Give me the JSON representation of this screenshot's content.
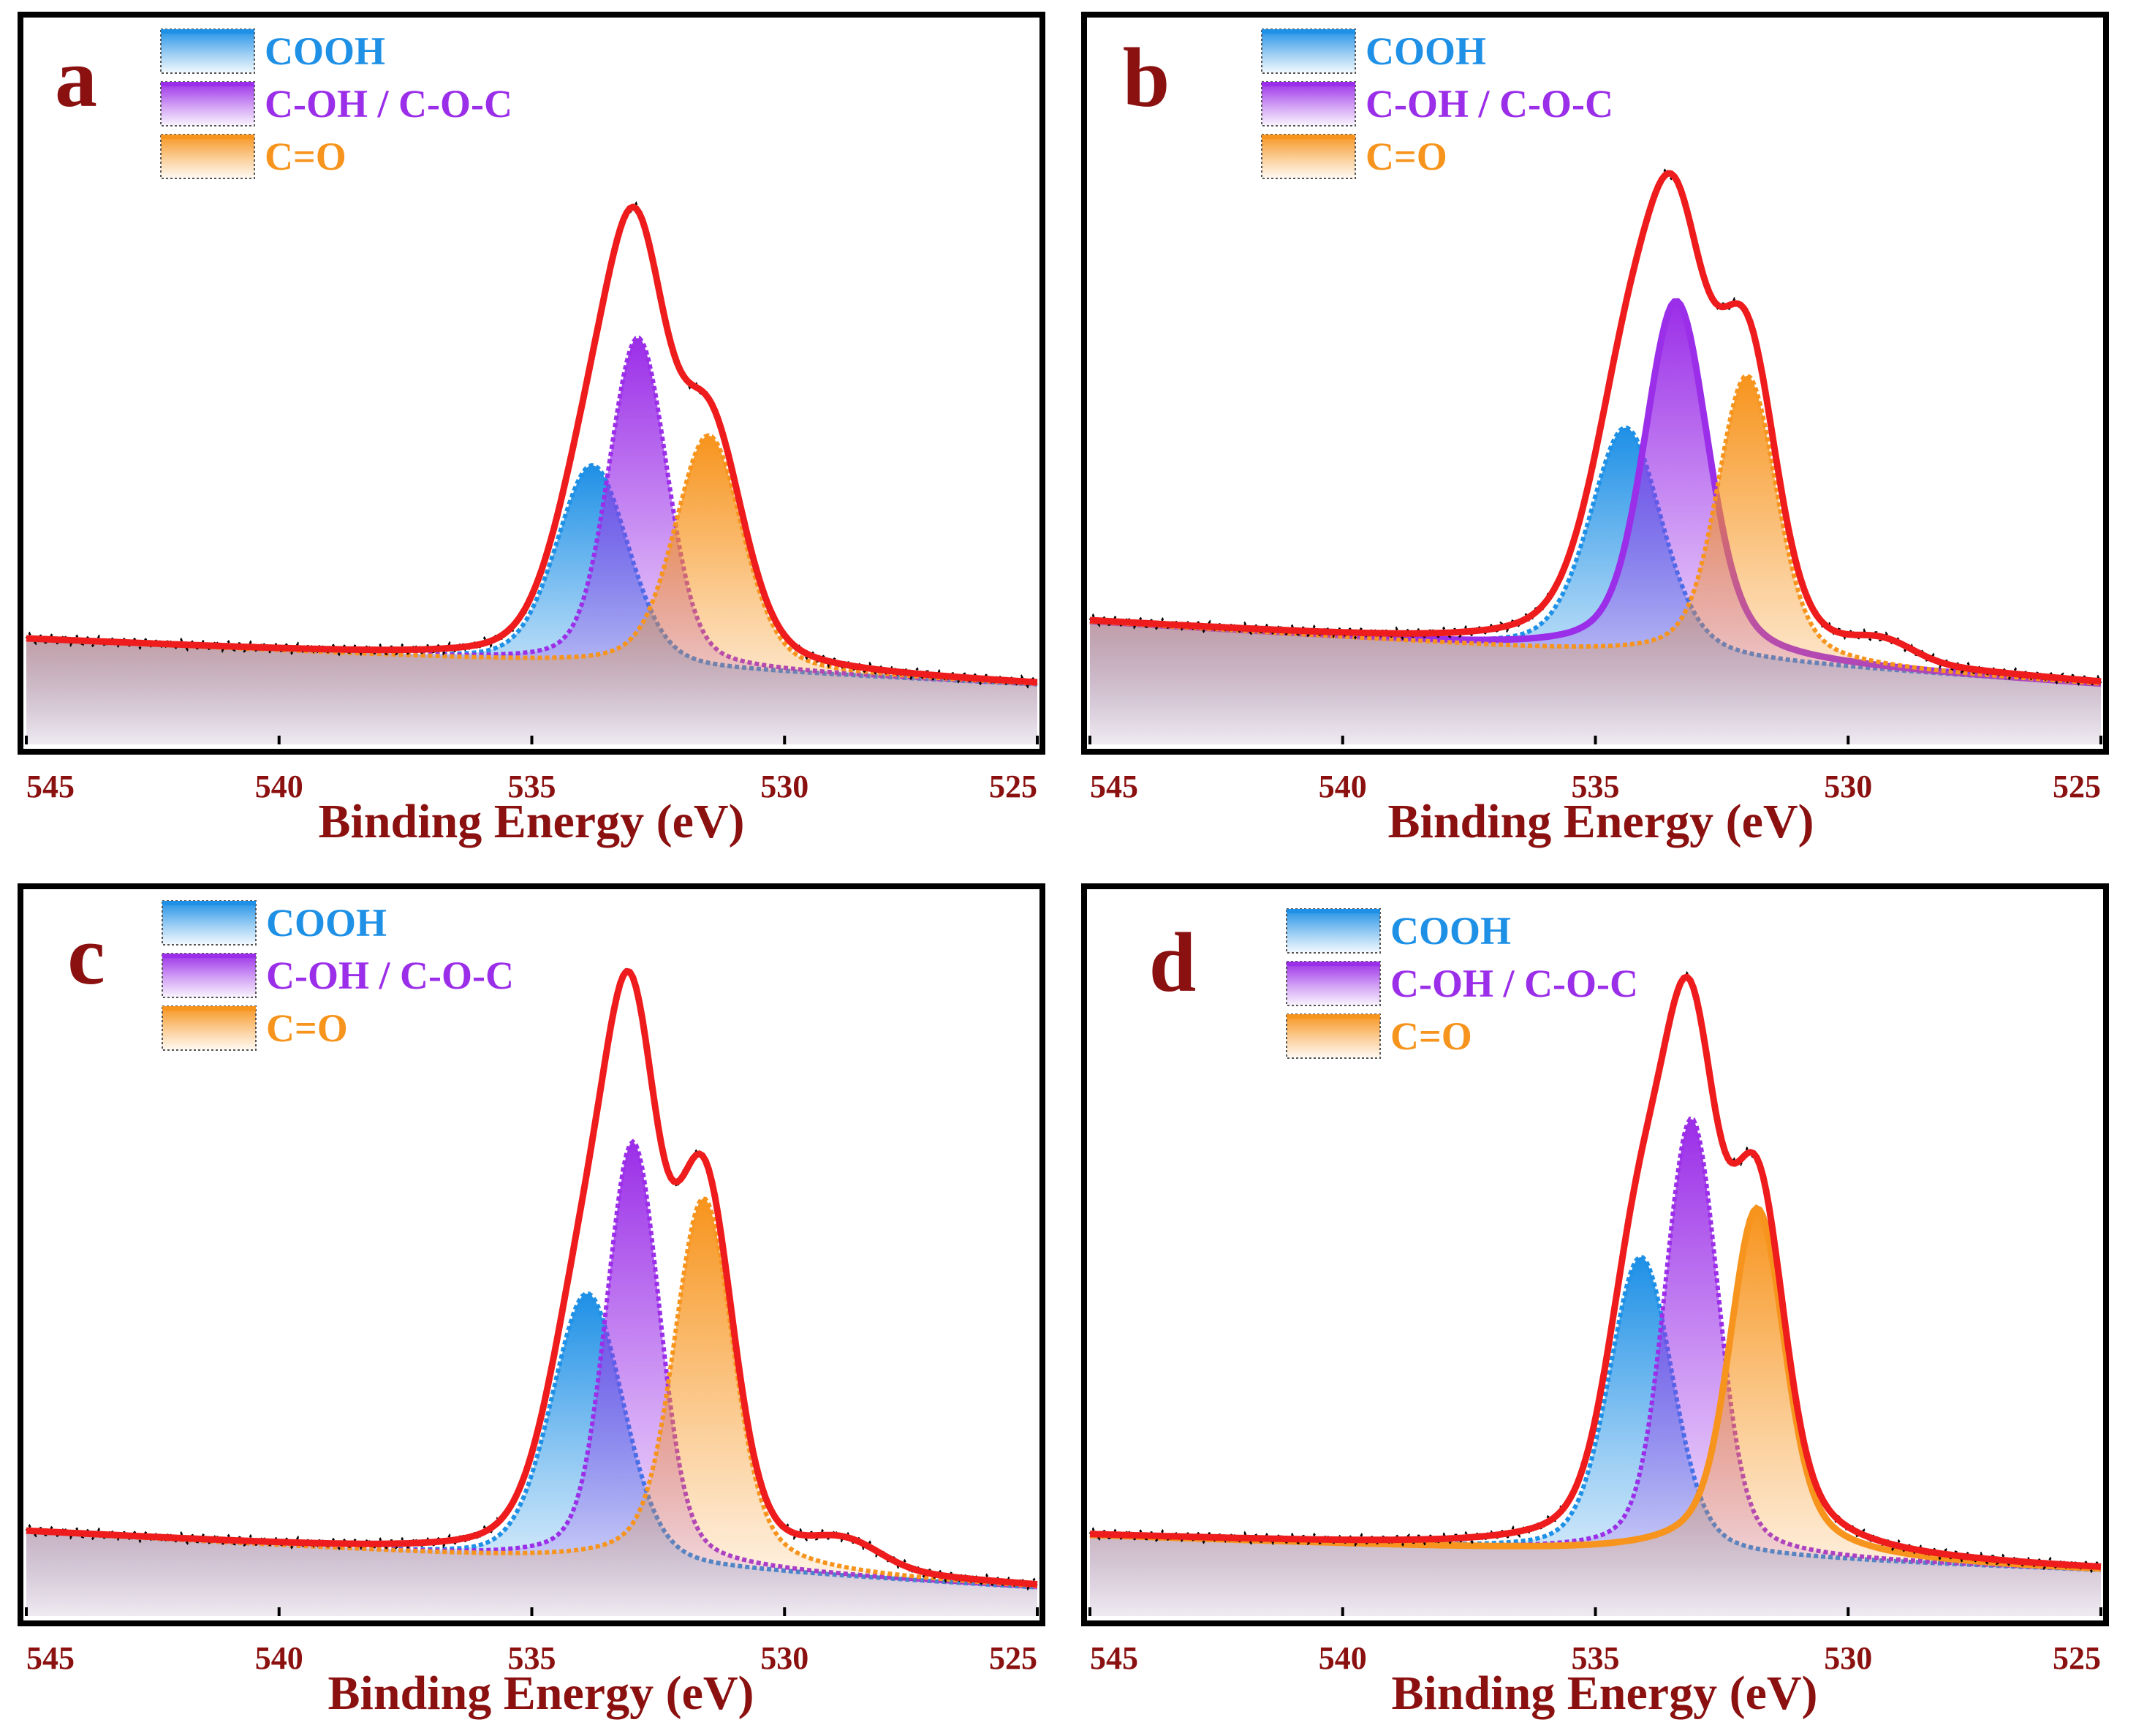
{
  "figure": {
    "description_colors": {
      "frame": "#000000",
      "axis_text": "#8b1010",
      "fit_envelope": "#ee1c1c"
    }
  },
  "series_styles": {
    "COOH": {
      "color": "#1e90e6"
    },
    "C-OH / C-O-C": {
      "color": "#9b2ee8"
    },
    "C=O": {
      "color": "#f7941d"
    }
  },
  "chart_data": [
    {
      "type": "line",
      "panel_label": "a",
      "xlabel": "Binding Energy (eV)",
      "ylabel": "",
      "xlim": [
        545,
        525
      ],
      "ylim": [
        0,
        100
      ],
      "x_ticks": [
        545,
        540,
        535,
        530,
        525
      ],
      "legend": {
        "entries": [
          "COOH",
          "C-OH / C-O-C",
          "C=O"
        ],
        "placement": "top-left"
      },
      "baseline": {
        "start": 15.0,
        "end": 8.5
      },
      "series": [
        {
          "name": "COOH",
          "center": 533.8,
          "height": 28.5,
          "sigma": 0.7,
          "gamma": 0.25,
          "solid": false
        },
        {
          "name": "C-OH / C-O-C",
          "center": 532.9,
          "height": 47.0,
          "sigma": 0.55,
          "gamma": 0.2,
          "solid": false
        },
        {
          "name": "C=O",
          "center": 531.5,
          "height": 33.5,
          "sigma": 0.65,
          "gamma": 0.3,
          "solid": false
        },
        {
          "name": "Fit envelope",
          "role": "sum of components",
          "tail_bump": null
        }
      ]
    },
    {
      "type": "line",
      "panel_label": "b",
      "xlabel": "Binding Energy (eV)",
      "ylabel": "",
      "xlim": [
        545,
        525
      ],
      "ylim": [
        0,
        100
      ],
      "x_ticks": [
        545,
        540,
        535,
        530,
        525
      ],
      "legend": {
        "entries": [
          "COOH",
          "C-OH / C-O-C",
          "C=O"
        ],
        "placement": "top-left"
      },
      "baseline": {
        "start": 17.5,
        "end": 8.5
      },
      "series": [
        {
          "name": "COOH",
          "center": 534.4,
          "height": 32.5,
          "sigma": 0.7,
          "gamma": 0.35,
          "solid": false
        },
        {
          "name": "C-OH / C-O-C",
          "center": 533.4,
          "height": 51.0,
          "sigma": 0.6,
          "gamma": 0.35,
          "solid": true
        },
        {
          "name": "C=O",
          "center": 532.0,
          "height": 41.0,
          "sigma": 0.55,
          "gamma": 0.3,
          "solid": false
        },
        {
          "name": "Fit envelope",
          "role": "sum of components",
          "tail_bump": {
            "center": 529.3,
            "height": 2.5,
            "sigma": 0.6
          }
        }
      ]
    },
    {
      "type": "line",
      "panel_label": "c",
      "xlabel": "Binding Energy (eV)",
      "ylabel": "",
      "xlim": [
        545,
        525
      ],
      "ylim": [
        0,
        100
      ],
      "x_ticks": [
        545,
        540,
        535,
        530,
        525
      ],
      "legend": {
        "entries": [
          "COOH",
          "C-OH / C-O-C",
          "C=O"
        ],
        "placement": "top-left"
      },
      "baseline": {
        "start": 12.0,
        "end": 4.0
      },
      "series": [
        {
          "name": "COOH",
          "center": 533.9,
          "height": 38.5,
          "sigma": 0.7,
          "gamma": 0.25,
          "solid": false
        },
        {
          "name": "C-OH / C-O-C",
          "center": 533.0,
          "height": 60.5,
          "sigma": 0.5,
          "gamma": 0.2,
          "solid": false
        },
        {
          "name": "C=O",
          "center": 531.6,
          "height": 53.0,
          "sigma": 0.55,
          "gamma": 0.3,
          "solid": false
        },
        {
          "name": "Fit envelope",
          "role": "sum of components",
          "tail_bump": {
            "center": 528.8,
            "height": 3.5,
            "sigma": 0.7
          }
        }
      ]
    },
    {
      "type": "line",
      "panel_label": "d",
      "xlabel": "Binding Energy (eV)",
      "ylabel": "",
      "xlim": [
        545,
        525
      ],
      "ylim": [
        0,
        100
      ],
      "x_ticks": [
        545,
        540,
        535,
        530,
        525
      ],
      "legend": {
        "entries": [
          "COOH",
          "C-OH / C-O-C",
          "C=O"
        ],
        "placement": "top-left"
      },
      "baseline": {
        "start": 11.5,
        "end": 6.5
      },
      "series": [
        {
          "name": "COOH",
          "center": 534.1,
          "height": 42.5,
          "sigma": 0.6,
          "gamma": 0.25,
          "solid": false
        },
        {
          "name": "C-OH / C-O-C",
          "center": 533.1,
          "height": 62.5,
          "sigma": 0.5,
          "gamma": 0.2,
          "solid": false
        },
        {
          "name": "C=O",
          "center": 531.8,
          "height": 50.0,
          "sigma": 0.5,
          "gamma": 0.35,
          "solid": true
        },
        {
          "name": "Fit envelope",
          "role": "sum of components",
          "tail_bump": null
        }
      ]
    }
  ]
}
